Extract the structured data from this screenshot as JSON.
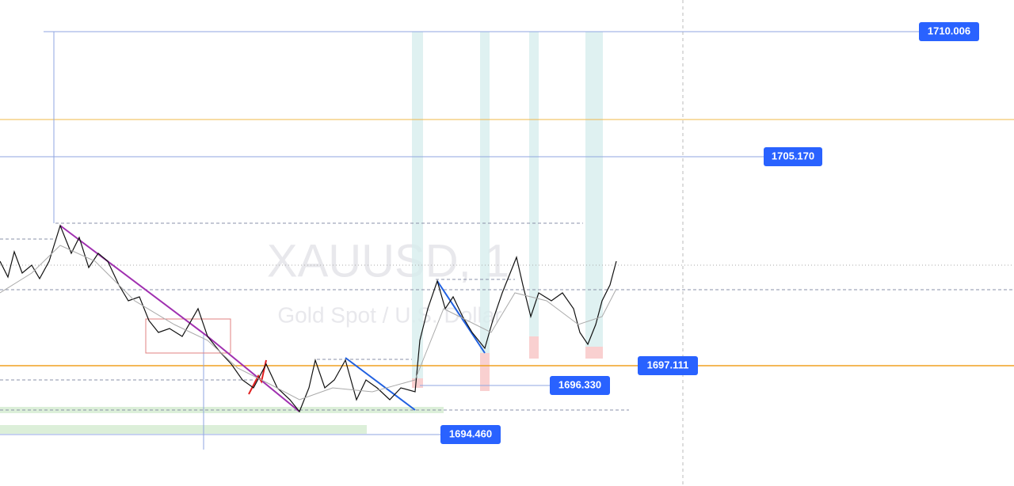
{
  "watermark": {
    "symbol": "XAUUSD, 1",
    "description": "Gold Spot / U.S. Dollar"
  },
  "price_labels": [
    "1710.006",
    "1705.170",
    "1697.111",
    "1696.330",
    "1694.460"
  ]
}
